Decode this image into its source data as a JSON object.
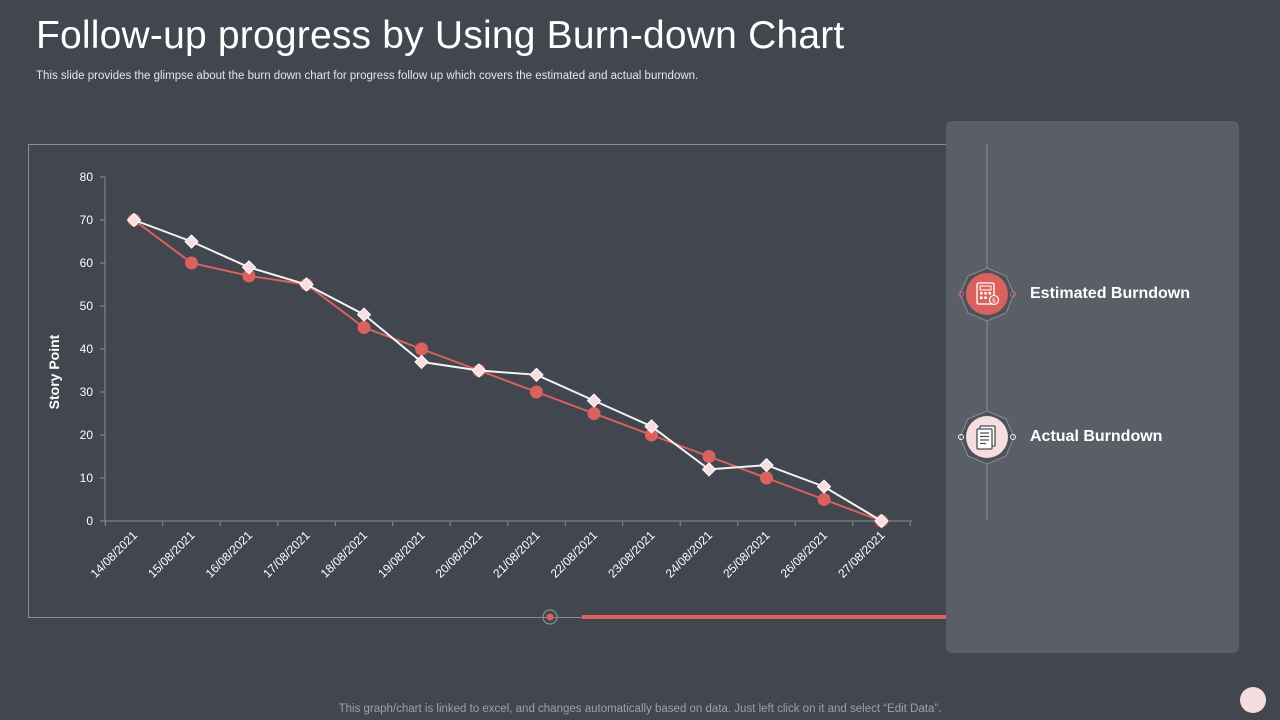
{
  "slide": {
    "title": "Follow-up progress by Using Burn-down Chart",
    "subtitle": "This slide provides the glimpse about the burn down chart for progress follow up which covers the estimated and actual burndown.",
    "footer": "This graph/chart is linked to excel,  and changes automatically based on data. Just left click on it and select “Edit Data”."
  },
  "legend": {
    "estimated_label": "Estimated Burndown",
    "actual_label": "Actual Burndown",
    "estimated_icon": "calculator-icon",
    "actual_icon": "document-icon"
  },
  "colors": {
    "background": "#42464f",
    "estimated": "#d9625f",
    "actual": "#f3f3f3",
    "actual_marker": "#f6dede",
    "axis": "#8a8d94"
  },
  "chart_data": {
    "type": "line",
    "ylabel": "Story Point",
    "xlabel": "",
    "ylim": [
      0,
      80
    ],
    "yticks": [
      0,
      10,
      20,
      30,
      40,
      50,
      60,
      70,
      80
    ],
    "grid": false,
    "legend_position": "right",
    "categories": [
      "14/08/2021",
      "15/08/2021",
      "16/08/2021",
      "17/08/2021",
      "18/08/2021",
      "19/08/2021",
      "20/08/2021",
      "21/08/2021",
      "22/08/2021",
      "23/08/2021",
      "24/08/2021",
      "25/08/2021",
      "26/08/2021",
      "27/08/2021"
    ],
    "series": [
      {
        "name": "Estimated Burndown",
        "marker": "circle",
        "color": "#d9625f",
        "values": [
          70,
          60,
          57,
          55,
          45,
          40,
          35,
          30,
          25,
          20,
          15,
          10,
          5,
          0
        ]
      },
      {
        "name": "Actual Burndown",
        "marker": "diamond",
        "color": "#f3f3f3",
        "values": [
          70,
          65,
          59,
          55,
          48,
          37,
          35,
          34,
          28,
          22,
          12,
          13,
          8,
          0
        ]
      }
    ]
  }
}
